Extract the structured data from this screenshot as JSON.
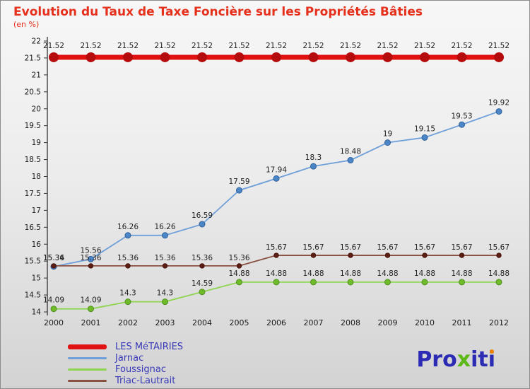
{
  "title": "Evolution du Taux de Taxe Foncière sur les Propriétés Bâties",
  "subtitle": "(en %)",
  "logo": {
    "part1": "Pro",
    "part2": "x",
    "part3": "it",
    "part4": "i"
  },
  "chart_data": {
    "type": "line",
    "x": [
      2000,
      2001,
      2002,
      2003,
      2004,
      2005,
      2006,
      2007,
      2008,
      2009,
      2010,
      2011,
      2012
    ],
    "ylim": [
      14,
      22
    ],
    "ytick_step": 0.5,
    "grid": false,
    "legend_position": "bottom-left",
    "series": [
      {
        "name": "LES MéTAIRIES",
        "color": "#e11212",
        "marker_color": "#b50d0d",
        "line_width": 7,
        "marker_radius": 7,
        "label_dy": -13,
        "values": [
          21.52,
          21.52,
          21.52,
          21.52,
          21.52,
          21.52,
          21.52,
          21.52,
          21.52,
          21.52,
          21.52,
          21.52,
          21.52
        ]
      },
      {
        "name": "Jarnac",
        "color": "#6f9fd8",
        "marker_color": "#4a86c8",
        "marker_stroke": "#2f5f99",
        "line_width": 1.8,
        "marker_radius": 4,
        "label_dy": -9,
        "values": [
          15.34,
          15.56,
          16.26,
          16.26,
          16.59,
          17.59,
          17.94,
          18.3,
          18.48,
          19,
          19.15,
          19.53,
          19.92
        ]
      },
      {
        "name": "Foussignac",
        "color": "#8fd44f",
        "marker_color": "#6fbb2a",
        "marker_stroke": "#4e8f1d",
        "line_width": 1.8,
        "marker_radius": 4,
        "label_dy": -9,
        "values": [
          14.09,
          14.09,
          14.3,
          14.3,
          14.59,
          14.88,
          14.88,
          14.88,
          14.88,
          14.88,
          14.88,
          14.88,
          14.88
        ]
      },
      {
        "name": "Triac-Lautrait",
        "color": "#8a5040",
        "marker_color": "#5e1f14",
        "marker_stroke": "#451009",
        "line_width": 1.8,
        "marker_radius": 3.2,
        "label_dy": -8,
        "values": [
          15.36,
          15.36,
          15.36,
          15.36,
          15.36,
          15.36,
          15.67,
          15.67,
          15.67,
          15.67,
          15.67,
          15.67,
          15.67
        ]
      }
    ],
    "axis_color": "#333333",
    "tick_label_color": "#1a1a1a",
    "value_label_color": "#222222"
  }
}
